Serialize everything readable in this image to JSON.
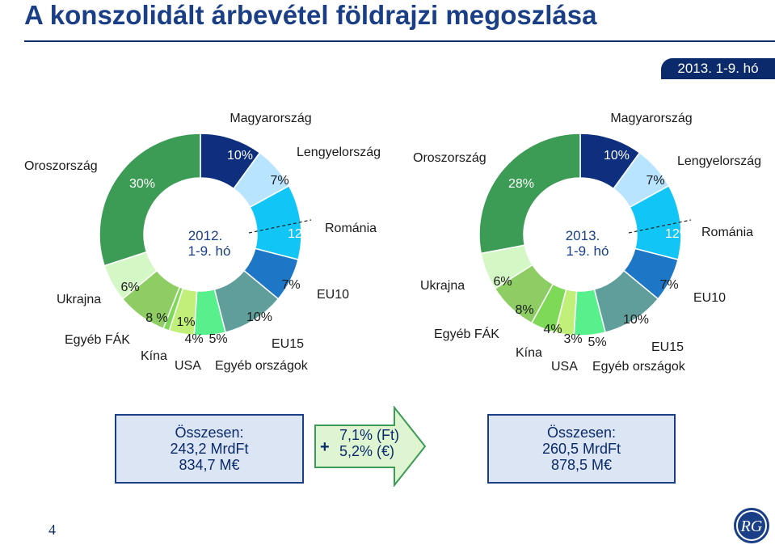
{
  "title": "A konszolidált árbevétel földrajzi megoszlása",
  "period_badge": "2013. 1-9. hó",
  "chart_data": [
    {
      "type": "pie",
      "center_label": [
        "2012.",
        "1-9. hó"
      ],
      "categories": [
        "Magyarország",
        "Lengyelország",
        "Románia",
        "EU10",
        "EU15",
        "Egyéb országok",
        "USA",
        "Kína",
        "Egyéb FÁK",
        "Ukrajna",
        "Oroszország"
      ],
      "values": [
        10,
        7,
        12,
        7,
        10,
        5,
        4,
        1,
        8,
        6,
        30
      ],
      "pct_labels": [
        "10%",
        "7%",
        "12%",
        "7%",
        "10%",
        "5%",
        "4%",
        "1%",
        "8 %",
        "6%",
        "30%"
      ],
      "colors": [
        "#0d2f7d",
        "#b9e4ff",
        "#11c6f7",
        "#1e77c6",
        "#5f9e9a",
        "#57f08c",
        "#c1f07a",
        "#7ed957",
        "#8dcd63",
        "#d4f7c6",
        "#3c9b55"
      ]
    },
    {
      "type": "pie",
      "center_label": [
        "2013.",
        "1-9. hó"
      ],
      "categories": [
        "Magyarország",
        "Lengyelország",
        "Románia",
        "EU10",
        "EU15",
        "Egyéb országok",
        "USA",
        "Kína",
        "Egyéb FÁK",
        "Ukrajna",
        "Oroszország"
      ],
      "values": [
        10,
        7,
        12,
        7,
        10,
        5,
        3,
        4,
        8,
        6,
        28
      ],
      "pct_labels": [
        "10%",
        "7%",
        "12%",
        "7%",
        "10%",
        "5%",
        "3%",
        "4%",
        "8%",
        "6%",
        "28%"
      ],
      "colors": [
        "#0d2f7d",
        "#b9e4ff",
        "#11c6f7",
        "#1e77c6",
        "#5f9e9a",
        "#57f08c",
        "#c1f07a",
        "#7ed957",
        "#8dcd63",
        "#d4f7c6",
        "#3c9b55"
      ]
    }
  ],
  "summary": {
    "left": {
      "line1": "Összesen:",
      "line2": "243,2 MrdFt",
      "line3": "834,7 M€"
    },
    "right": {
      "line1": "Összesen:",
      "line2": "260,5 MrdFt",
      "line3": "878,5 M€"
    },
    "growth": {
      "plus": "+",
      "ft": "7,1% (Ft)",
      "eur": "5,2% (€)"
    }
  },
  "page_number": "4",
  "logo_text": "RG",
  "colors": {
    "title": "#1a3f87",
    "badge_bg": "#0a2a6b",
    "box_bg": "#dbe5f3",
    "arrow_fill": "#dff5d2",
    "arrow_stroke": "#3c9b55"
  }
}
